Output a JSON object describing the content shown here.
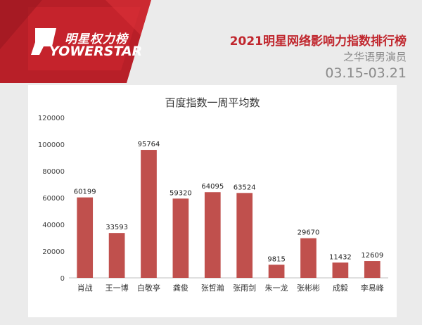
{
  "brand": {
    "logo_cn": "明星权力榜",
    "logo_en": "YOWERSTAR"
  },
  "header": {
    "title": "2021明星网络影响力指数排行榜",
    "subtitle": "之华语男演员",
    "date_range": "03.15-03.21"
  },
  "colors": {
    "accent": "#c0262d",
    "bar": "#c0504d",
    "banner": "#c8202c"
  },
  "chart_data": {
    "type": "bar",
    "title": "百度指数一周平均数",
    "categories": [
      "肖战",
      "王一博",
      "白敬亭",
      "龚俊",
      "张哲瀚",
      "张雨剑",
      "朱一龙",
      "张彬彬",
      "成毅",
      "李易峰"
    ],
    "values": [
      60199,
      33593,
      95764,
      59320,
      64095,
      63524,
      9815,
      29670,
      11432,
      12609
    ],
    "data_labels": [
      "60199",
      "33593",
      "95764",
      "59320",
      "64095",
      "63524",
      "9815",
      "29670",
      "11432",
      "12609"
    ],
    "y_ticks": [
      0,
      20000,
      40000,
      60000,
      80000,
      100000,
      120000
    ],
    "ylim": [
      0,
      120000
    ],
    "grid": false,
    "legend": "none"
  }
}
